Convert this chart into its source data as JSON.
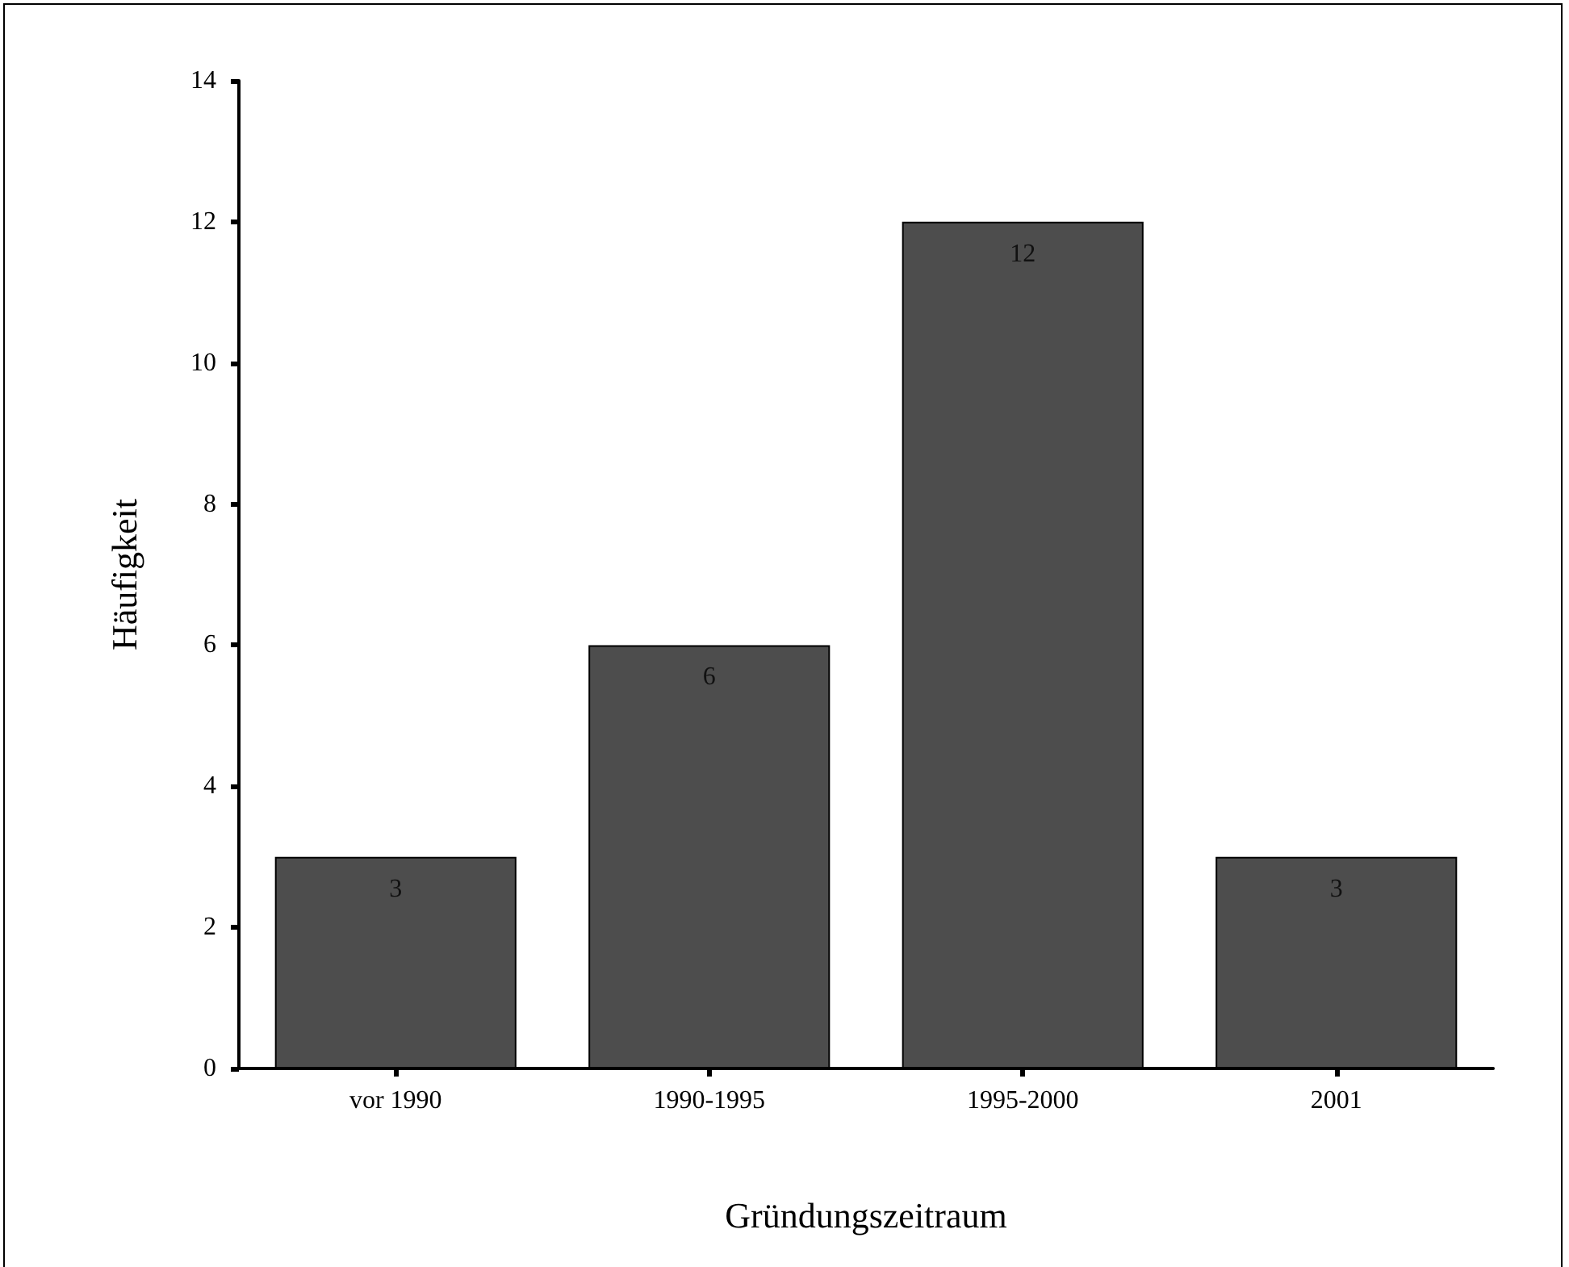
{
  "chart_data": {
    "type": "bar",
    "xlabel": "Gründungszeitraum",
    "ylabel": "Häufigkeit",
    "categories": [
      "vor 1990",
      "1990-1995",
      "1995-2000",
      "2001"
    ],
    "values": [
      3,
      6,
      12,
      3
    ],
    "color": "#4d4d4d",
    "ylim": [
      0,
      14
    ],
    "yticks": [
      0,
      2,
      4,
      6,
      8,
      10,
      12,
      14
    ],
    "grid": false,
    "data_labels": true
  }
}
